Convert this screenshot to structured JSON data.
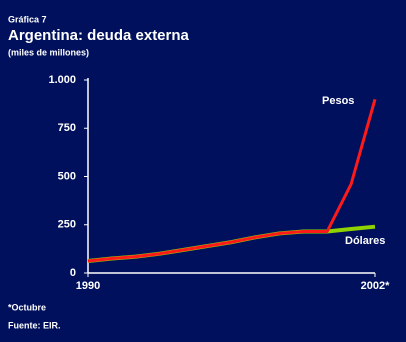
{
  "chart_data": {
    "type": "line",
    "label": "Gráfica 7",
    "title": "Argentina: deuda externa",
    "subtitle": "(miles de millones)",
    "x": [
      1990,
      1991,
      1992,
      1993,
      1994,
      1995,
      1996,
      1997,
      1998,
      1999,
      2000,
      2001,
      2002
    ],
    "xlim": [
      1990,
      2002
    ],
    "xticks": [
      1990,
      {
        "value": 2002,
        "label": "2002*"
      }
    ],
    "ylim": [
      0,
      1000
    ],
    "yticks": [
      0,
      250,
      500,
      {
        "value": 750,
        "label": "750"
      },
      {
        "value": 1000,
        "label": "1.000"
      }
    ],
    "series": [
      {
        "name": "Dólares",
        "color": "#8fd400",
        "values": [
          62,
          75,
          85,
          100,
          120,
          140,
          160,
          185,
          205,
          215,
          215,
          228,
          240
        ]
      },
      {
        "name": "Pesos",
        "color": "#ff1a1a",
        "values": [
          62,
          75,
          85,
          100,
          120,
          140,
          160,
          185,
          205,
          215,
          215,
          460,
          900
        ]
      }
    ],
    "footnote": "*Octubre",
    "source": "Fuente: EIR."
  }
}
